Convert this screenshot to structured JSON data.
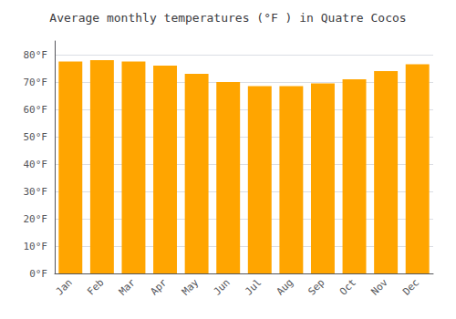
{
  "chart_data": {
    "type": "bar",
    "title": "Average monthly temperatures (°F ) in Quatre Cocos",
    "categories": [
      "Jan",
      "Feb",
      "Mar",
      "Apr",
      "May",
      "Jun",
      "Jul",
      "Aug",
      "Sep",
      "Oct",
      "Nov",
      "Dec"
    ],
    "values": [
      77.5,
      78.0,
      77.5,
      76.0,
      73.0,
      70.0,
      68.5,
      68.5,
      69.5,
      71.0,
      74.0,
      76.5
    ],
    "color": "#FFA500",
    "ylim": [
      0,
      85
    ],
    "yticks": [
      {
        "value": 0,
        "label": "0°F"
      },
      {
        "value": 10,
        "label": "10°F"
      },
      {
        "value": 20,
        "label": "20°F"
      },
      {
        "value": 30,
        "label": "30°F"
      },
      {
        "value": 40,
        "label": "40°F"
      },
      {
        "value": 50,
        "label": "50°F"
      },
      {
        "value": 60,
        "label": "60°F"
      },
      {
        "value": 70,
        "label": "70°F"
      },
      {
        "value": 80,
        "label": "80°F"
      }
    ],
    "grid": true
  }
}
